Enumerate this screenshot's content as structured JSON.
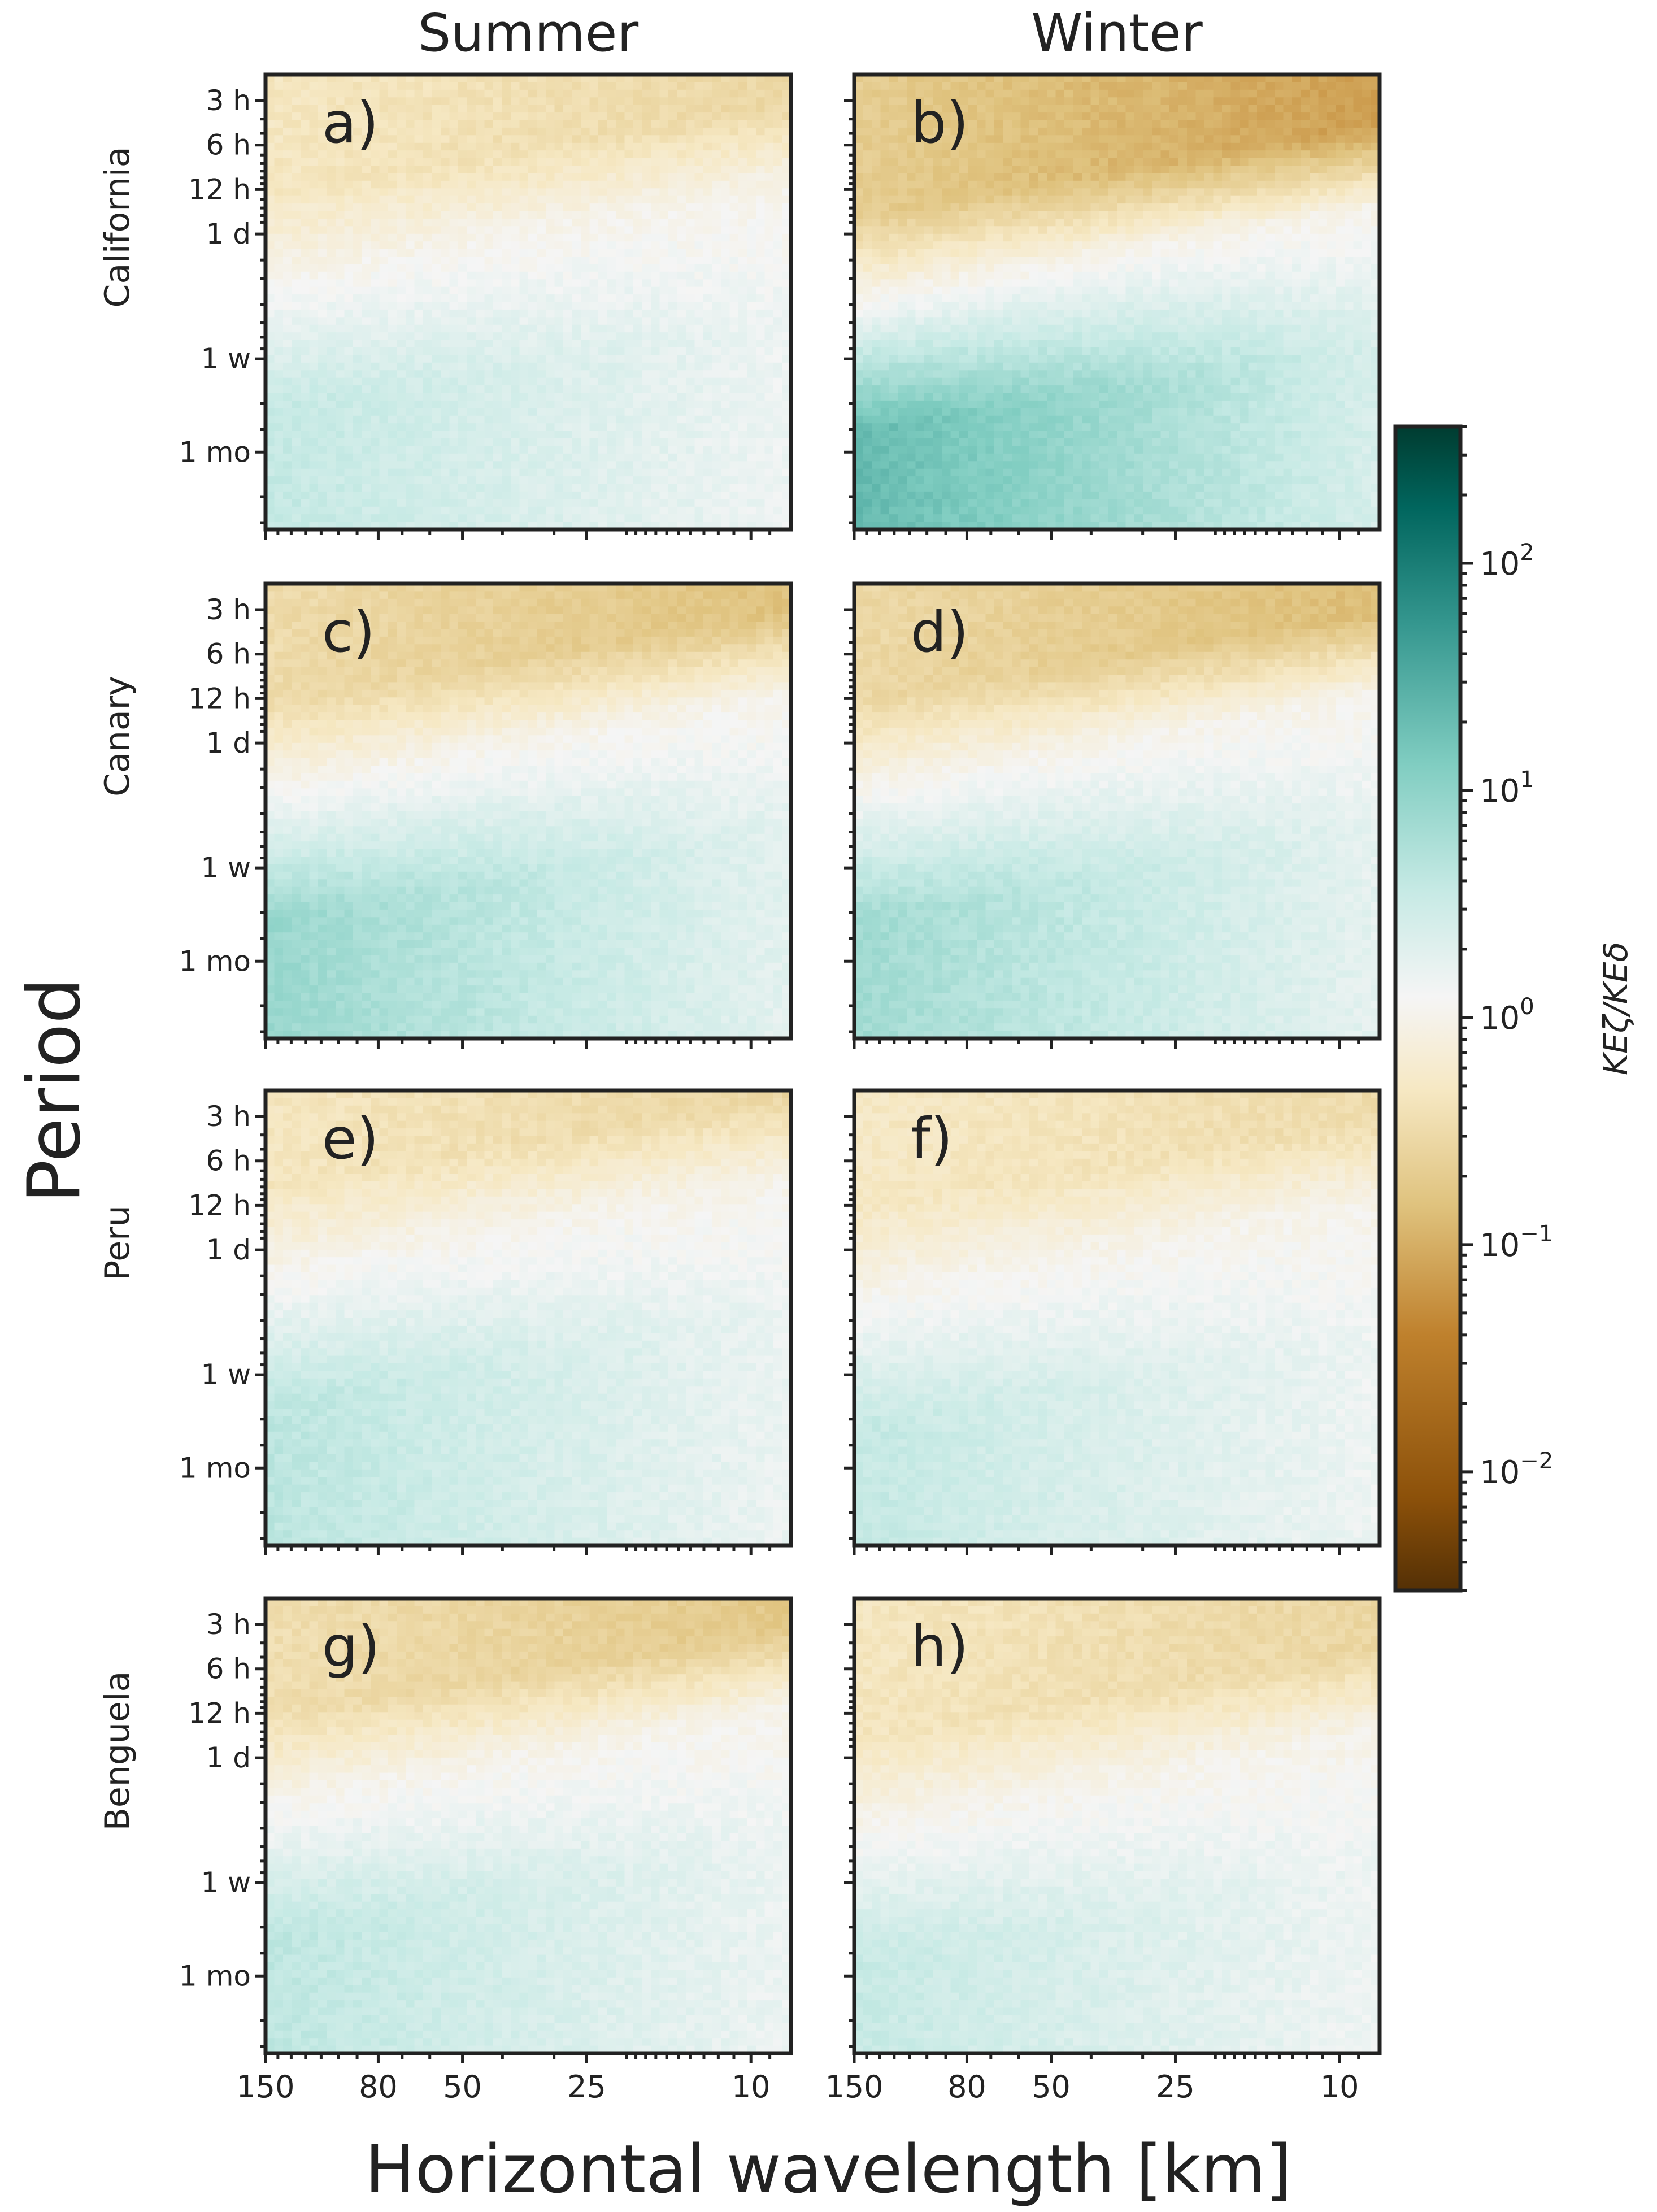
{
  "chart_data": {
    "type": "heatmap",
    "description_axes": {
      "xlabel": "Horizontal wavelength [km]",
      "ylabel": "Period",
      "x_scale": "log (reversed)",
      "x_range_km": [
        150,
        8
      ],
      "y_scale": "log",
      "y_range": [
        "2 h",
        "3 mo"
      ]
    },
    "columns": [
      "Summer",
      "Winter"
    ],
    "rows": [
      "California",
      "Canary",
      "Peru",
      "Benguela"
    ],
    "panels": [
      {
        "label": "a)",
        "region": "California",
        "season": "Summer"
      },
      {
        "label": "b)",
        "region": "California",
        "season": "Winter"
      },
      {
        "label": "c)",
        "region": "Canary",
        "season": "Summer"
      },
      {
        "label": "d)",
        "region": "Canary",
        "season": "Winter"
      },
      {
        "label": "e)",
        "region": "Peru",
        "season": "Summer"
      },
      {
        "label": "f)",
        "region": "Peru",
        "season": "Winter"
      },
      {
        "label": "g)",
        "region": "Benguela",
        "season": "Summer"
      },
      {
        "label": "h)",
        "region": "Benguela",
        "season": "Winter"
      }
    ],
    "y_ticks": [
      "3 h",
      "6 h",
      "12 h",
      "1 d",
      "1 w",
      "1 mo"
    ],
    "y_tick_hours": [
      3,
      6,
      12,
      24,
      168,
      720
    ],
    "x_ticks": [
      "150",
      "80",
      "50",
      "25",
      "10"
    ],
    "x_tick_km": [
      150,
      80,
      50,
      25,
      10
    ],
    "colorbar": {
      "label": "KEζ/KEδ",
      "scale": "log",
      "range": [
        0.003,
        400
      ],
      "ticks": [
        "10−2",
        "10−1",
        "100",
        "101",
        "102"
      ],
      "tick_values": [
        0.01,
        0.1,
        1,
        10,
        100
      ],
      "colormap": "BrBG",
      "colors": [
        "#543005",
        "#8c510a",
        "#bf812d",
        "#dfc27d",
        "#f6e8c3",
        "#f5f5f5",
        "#c7eae5",
        "#80cdc1",
        "#35978f",
        "#01665e",
        "#003c30"
      ]
    },
    "summary": "Ratio of rotational to divergent kinetic energy; ratio < 1 (brown) at periods shorter than ~1 day, ratio > 1 (teal) at periods longer than ~1 day, strongest at large wavelengths and long periods, especially in winter."
  }
}
